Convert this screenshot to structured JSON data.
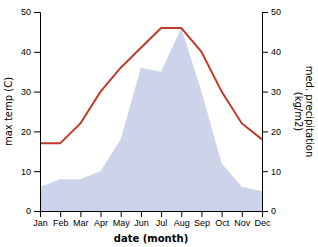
{
  "chart_data": {
    "type": "line",
    "xlabel": "date (month)",
    "ylabel": "max temp (C)",
    "y2label": "med. precipitation\n(kg/m2)",
    "categories": [
      "Jan",
      "Feb",
      "Mar",
      "Apr",
      "May",
      "Jun",
      "Jul",
      "Aug",
      "Sep",
      "Oct",
      "Nov",
      "Dec"
    ],
    "series": [
      {
        "type": "area",
        "axis": "y2",
        "color": "#b8c0e0",
        "values": [
          6,
          8,
          8,
          10,
          18,
          36,
          35,
          46,
          30,
          12,
          6,
          5
        ]
      },
      {
        "type": "line",
        "color": "#c0392b",
        "values": [
          17,
          17,
          22,
          30,
          36,
          41,
          46,
          46,
          40,
          30,
          22,
          18
        ]
      }
    ],
    "ylim": [
      0,
      50
    ],
    "yticks": [
      0,
      10,
      20,
      30,
      40,
      50
    ],
    "y2lim": [
      0,
      50
    ],
    "y2ticks": [
      0,
      10,
      20,
      30,
      40,
      50
    ],
    "grid": false
  }
}
